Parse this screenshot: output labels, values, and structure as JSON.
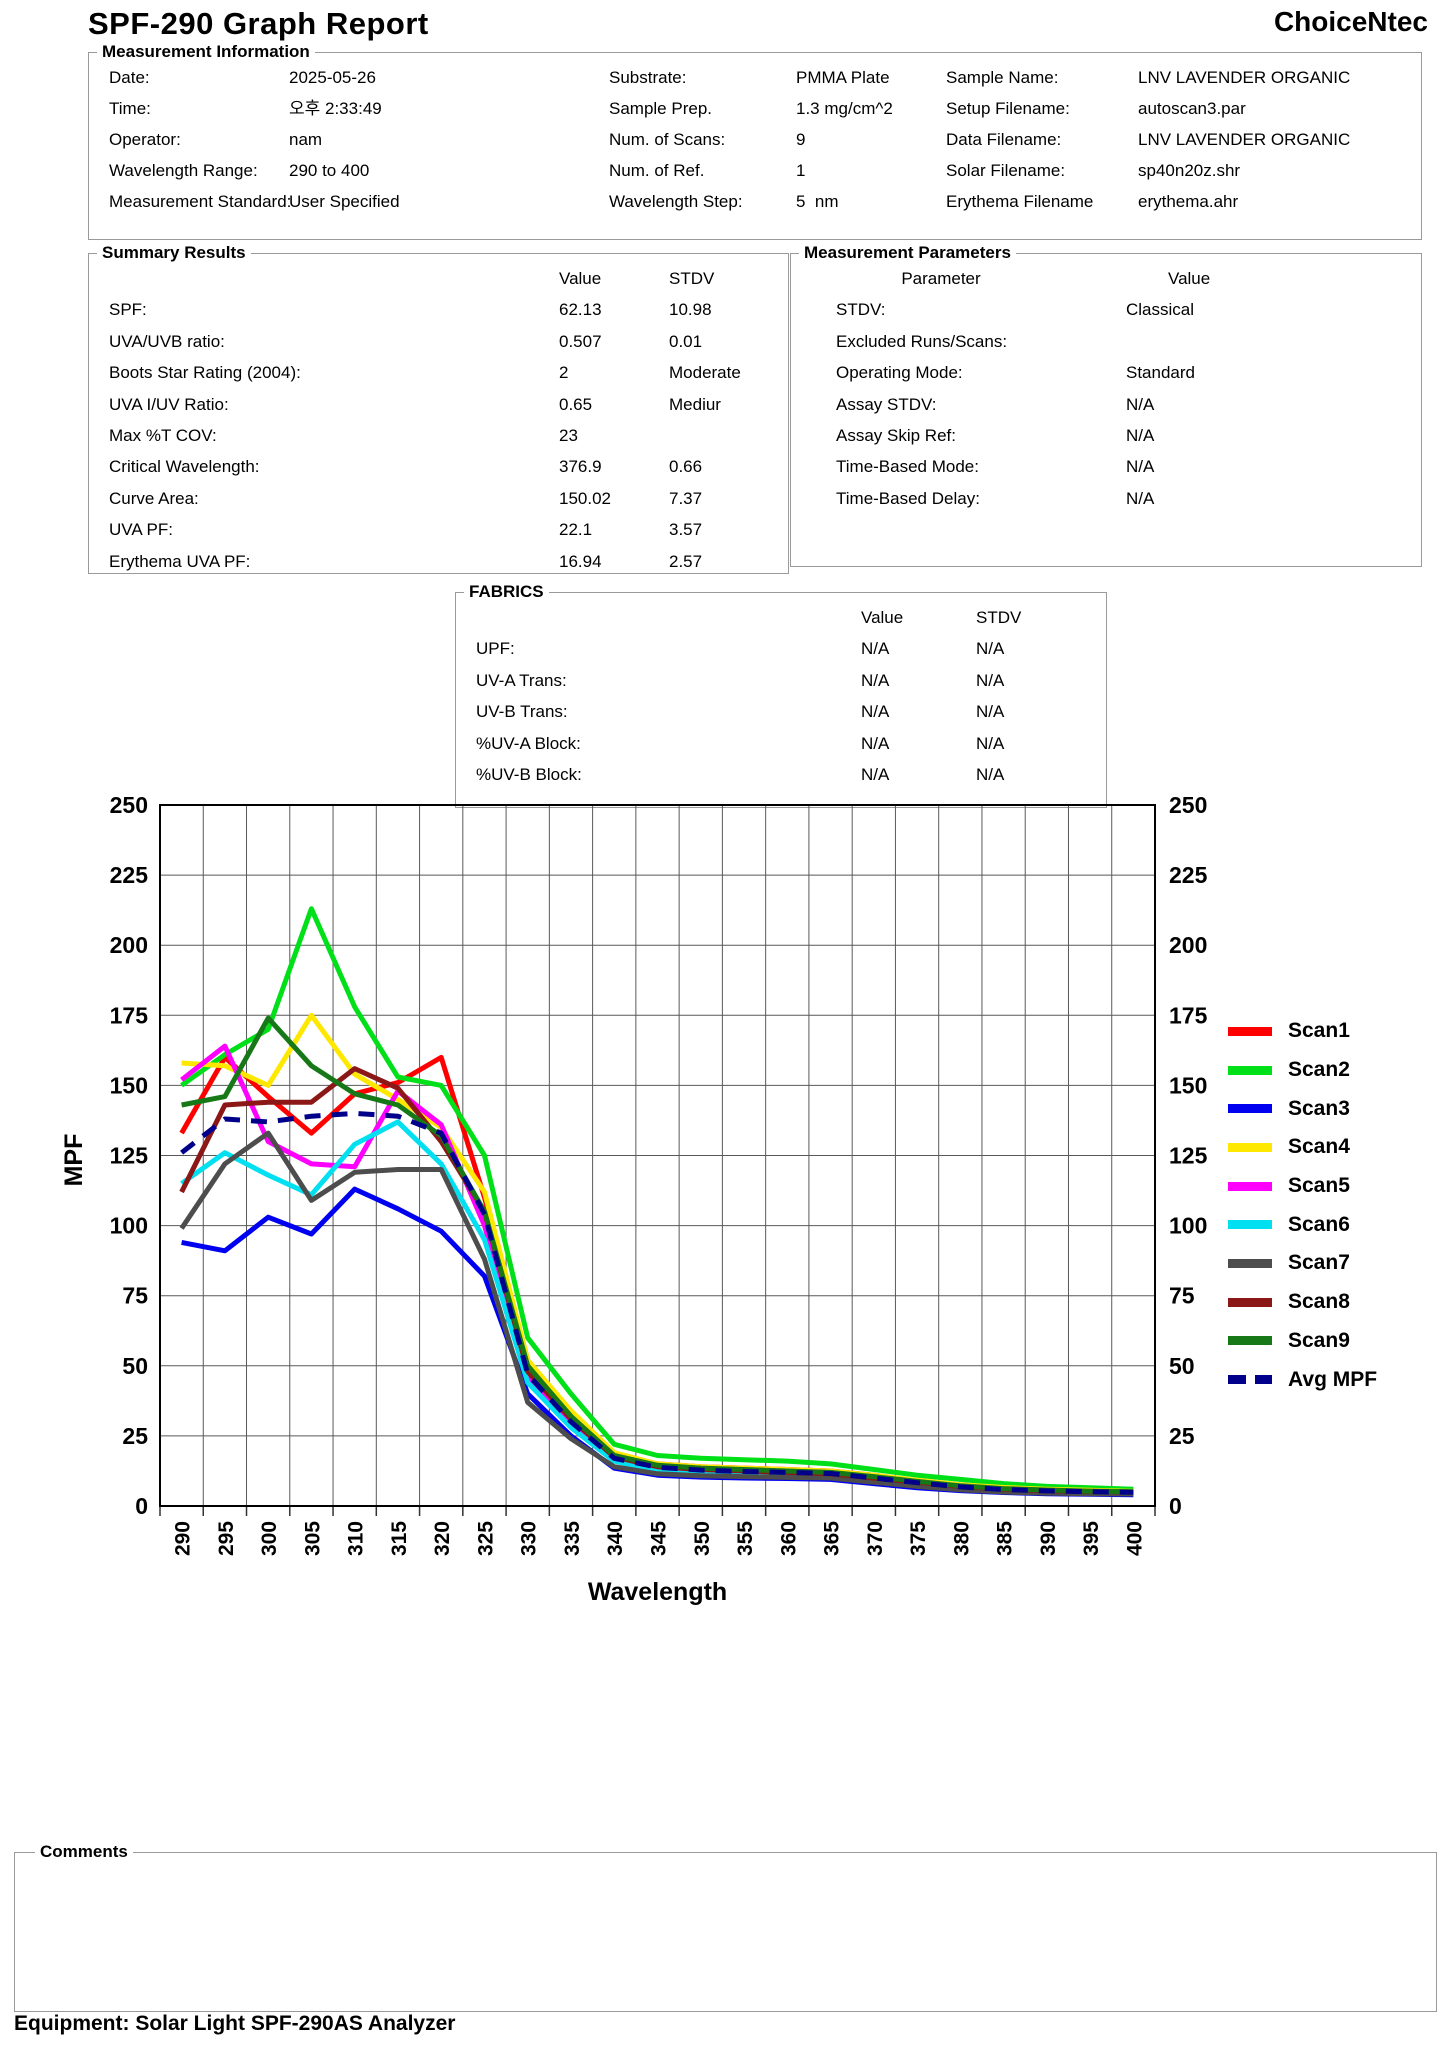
{
  "header": {
    "title": "SPF-290 Graph Report",
    "brand": "ChoiceNtec"
  },
  "measurement_information": {
    "legend": "Measurement Information",
    "rows": [
      {
        "l1": "Date:",
        "v1": "2025-05-26",
        "l2": "Substrate:",
        "v2": "PMMA Plate",
        "l3": "Sample Name:",
        "v3": "LNV LAVENDER ORGANIC"
      },
      {
        "l1": "Time:",
        "v1": "오후 2:33:49",
        "l2": "Sample Prep.",
        "v2": "1.3 mg/cm^2",
        "l3": "Setup Filename:",
        "v3": "autoscan3.par"
      },
      {
        "l1": "Operator:",
        "v1": "nam",
        "l2": "Num. of Scans:",
        "v2": "9",
        "l3": "Data Filename:",
        "v3": "LNV LAVENDER ORGANIC"
      },
      {
        "l1": "Wavelength Range:",
        "v1": "290 to 400",
        "l2": "Num. of Ref.",
        "v2": "1",
        "l3": "Solar Filename:",
        "v3": "sp40n20z.shr"
      },
      {
        "l1": "Measurement Standard:",
        "v1": "User Specified",
        "l2": "Wavelength Step:",
        "v2": "5  nm",
        "l3": "Erythema Filename",
        "v3": "erythema.ahr"
      }
    ]
  },
  "summary_results": {
    "legend": "Summary Results",
    "value_header": "Value",
    "stdv_header": "STDV",
    "rows": [
      {
        "label": "SPF:",
        "value": "62.13",
        "stdv": "10.98"
      },
      {
        "label": "UVA/UVB ratio:",
        "value": "0.507",
        "stdv": "0.01"
      },
      {
        "label": "Boots Star Rating (2004):",
        "value": "2",
        "stdv": "Moderate"
      },
      {
        "label": "UVA I/UV Ratio:",
        "value": "0.65",
        "stdv": "Mediur"
      },
      {
        "label": "Max %T COV:",
        "value": "23",
        "stdv": ""
      },
      {
        "label": "Critical Wavelength:",
        "value": "376.9",
        "stdv": "0.66"
      },
      {
        "label": "Curve Area:",
        "value": "150.02",
        "stdv": "7.37"
      },
      {
        "label": "UVA PF:",
        "value": "22.1",
        "stdv": "3.57"
      },
      {
        "label": "Erythema UVA PF:",
        "value": "16.94",
        "stdv": "2.57"
      }
    ]
  },
  "measurement_parameters": {
    "legend": "Measurement Parameters",
    "param_header": "Parameter",
    "value_header": "Value",
    "rows": [
      {
        "label": "STDV:",
        "value": "Classical"
      },
      {
        "label": "Excluded Runs/Scans:",
        "value": ""
      },
      {
        "label": "Operating Mode:",
        "value": "Standard"
      },
      {
        "label": "Assay STDV:",
        "value": "N/A"
      },
      {
        "label": "Assay Skip Ref:",
        "value": "N/A"
      },
      {
        "label": "Time-Based Mode:",
        "value": "N/A"
      },
      {
        "label": "Time-Based Delay:",
        "value": "N/A"
      }
    ]
  },
  "fabrics": {
    "legend": "FABRICS",
    "value_header": "Value",
    "stdv_header": "STDV",
    "rows": [
      {
        "label": "UPF:",
        "value": "N/A",
        "stdv": "N/A"
      },
      {
        "label": "UV-A Trans:",
        "value": "N/A",
        "stdv": "N/A"
      },
      {
        "label": "UV-B Trans:",
        "value": "N/A",
        "stdv": "N/A"
      },
      {
        "label": "%UV-A Block:",
        "value": "N/A",
        "stdv": "N/A"
      },
      {
        "label": "%UV-B Block:",
        "value": "N/A",
        "stdv": "N/A"
      }
    ]
  },
  "chart_data": {
    "type": "line",
    "xlabel": "Wavelength",
    "ylabel": "MPF",
    "ylim": [
      0,
      250
    ],
    "ytick_step": 25,
    "grid": true,
    "legend_position": "right",
    "x": [
      290,
      295,
      300,
      305,
      310,
      315,
      320,
      325,
      330,
      335,
      340,
      345,
      350,
      355,
      360,
      365,
      370,
      375,
      380,
      385,
      390,
      395,
      400
    ],
    "series": [
      {
        "name": "Scan1",
        "color": "#ff0000",
        "dashed": false,
        "values": [
          133,
          160,
          146,
          133,
          147,
          151,
          160,
          110,
          52,
          33,
          18,
          15,
          14,
          13.5,
          13,
          12.5,
          11,
          9,
          7.5,
          6.5,
          6,
          5.5,
          5
        ]
      },
      {
        "name": "Scan2",
        "color": "#00e019",
        "dashed": false,
        "values": [
          150,
          161,
          170,
          213,
          178,
          153,
          150,
          125,
          60,
          40,
          22,
          18,
          17,
          16.5,
          16,
          15,
          13,
          11,
          9.5,
          8,
          7,
          6.5,
          6
        ]
      },
      {
        "name": "Scan3",
        "color": "#0000f0",
        "dashed": false,
        "values": [
          94,
          91,
          103,
          97,
          113,
          106,
          98,
          82,
          40,
          25,
          13.5,
          11,
          10.3,
          10,
          9.8,
          9.5,
          8,
          6.5,
          5.5,
          4.8,
          4.4,
          4.2,
          4
        ]
      },
      {
        "name": "Scan4",
        "color": "#ffe800",
        "dashed": false,
        "values": [
          158,
          157,
          150,
          175,
          154,
          145,
          135,
          112,
          52,
          34,
          19,
          15,
          14,
          13.5,
          13,
          12.5,
          11,
          9.2,
          7.6,
          6.6,
          6,
          5.6,
          5.2
        ]
      },
      {
        "name": "Scan5",
        "color": "#ff00ff",
        "dashed": false,
        "values": [
          152,
          164,
          130,
          122,
          121,
          148,
          136,
          100,
          46,
          30,
          17,
          13.5,
          12.5,
          12,
          11.5,
          11,
          9.5,
          8,
          6.5,
          5.8,
          5.3,
          5,
          4.8
        ]
      },
      {
        "name": "Scan6",
        "color": "#00e0f0",
        "dashed": false,
        "values": [
          115,
          126,
          118,
          111,
          129,
          137,
          122,
          95,
          44,
          28,
          16,
          12.5,
          11.5,
          11,
          10.8,
          10.5,
          9,
          7.5,
          6,
          5.3,
          4.8,
          4.6,
          4.5
        ]
      },
      {
        "name": "Scan7",
        "color": "#4d4d4d",
        "dashed": false,
        "values": [
          99,
          122,
          133,
          109,
          119,
          120,
          120,
          88,
          37,
          24,
          14,
          11.5,
          10.8,
          10.5,
          10.2,
          10,
          8.5,
          7,
          5.8,
          5,
          4.6,
          4.4,
          4.3
        ]
      },
      {
        "name": "Scan8",
        "color": "#8b1717",
        "dashed": false,
        "values": [
          112,
          143,
          144,
          144,
          156,
          149,
          130,
          105,
          48,
          31,
          17.5,
          14,
          13,
          12.5,
          12,
          11.5,
          10,
          8.5,
          7,
          6,
          5.5,
          5.2,
          5
        ]
      },
      {
        "name": "Scan9",
        "color": "#177817",
        "dashed": false,
        "values": [
          143,
          146,
          174,
          157,
          147,
          143,
          132,
          105,
          50,
          32,
          18,
          14.5,
          13.5,
          13,
          12.5,
          12,
          10.5,
          8.8,
          7.2,
          6.2,
          5.7,
          5.3,
          5.1
        ]
      },
      {
        "name": "Avg MPF",
        "color": "#00008b",
        "dashed": true,
        "values": [
          126,
          138,
          137,
          139,
          140,
          139,
          133,
          104,
          47,
          30,
          17,
          13.8,
          12.8,
          12.3,
          12,
          11.6,
          10,
          8.3,
          6.8,
          5.9,
          5.4,
          5.1,
          4.9
        ]
      }
    ]
  },
  "comments": {
    "legend": "Comments",
    "text": ""
  },
  "footer": {
    "equipment": "Equipment: Solar Light SPF-290AS Analyzer"
  }
}
